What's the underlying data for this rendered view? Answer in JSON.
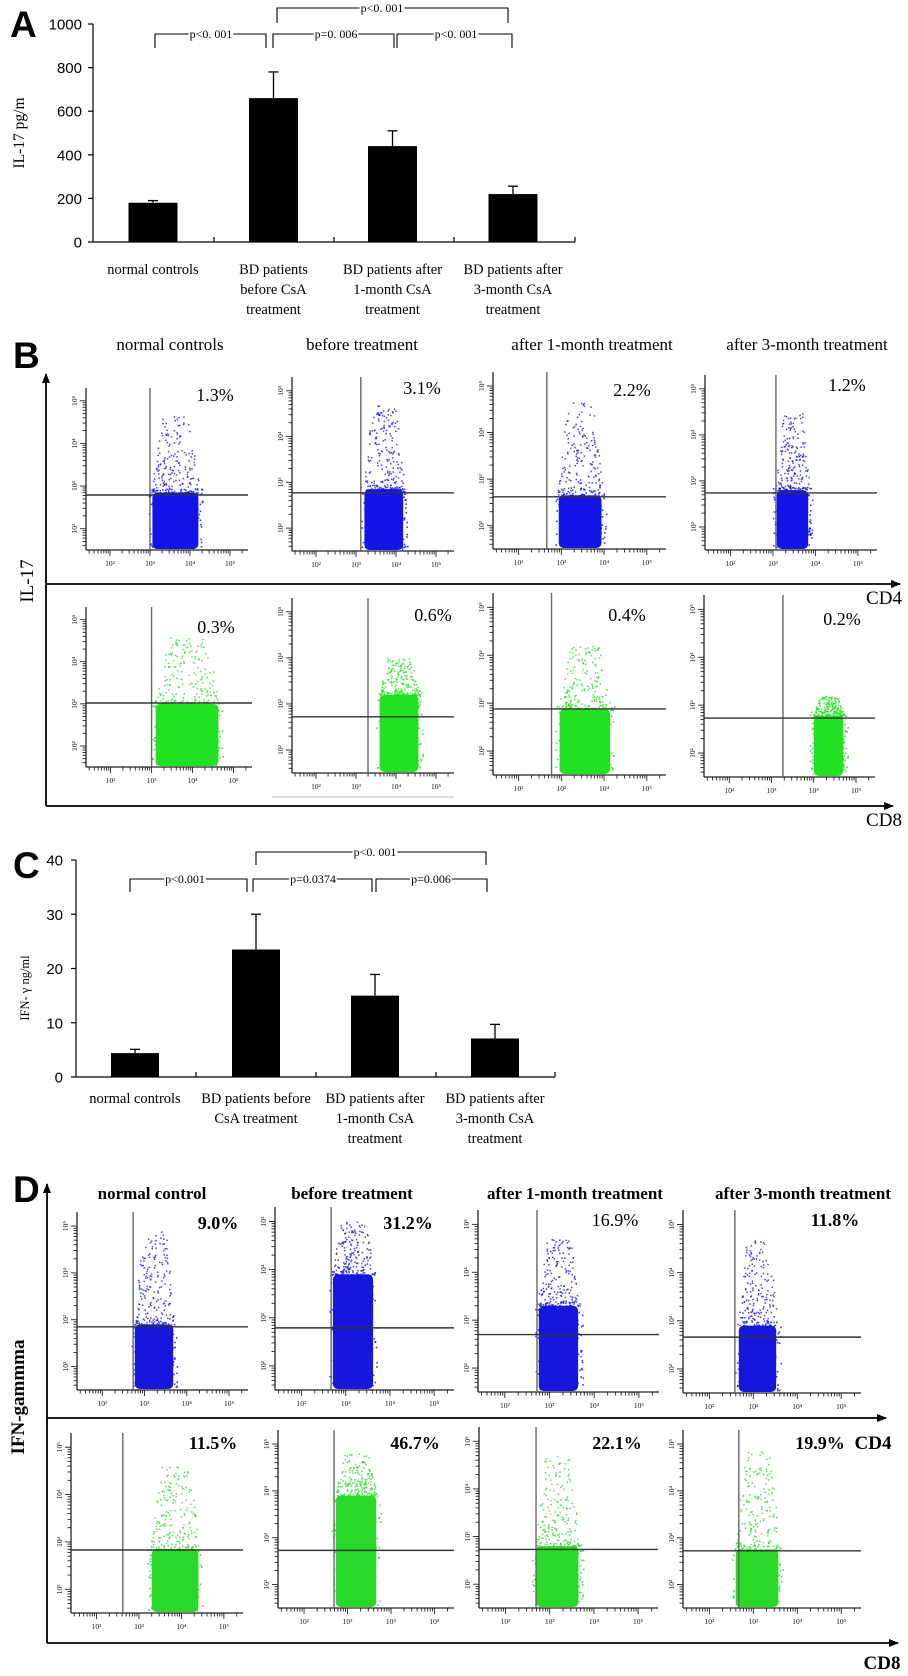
{
  "figure": {
    "panel_labels": [
      "A",
      "B",
      "C",
      "D"
    ]
  },
  "chart_data": [
    {
      "panel": "A",
      "type": "bar",
      "title": "",
      "xlabel": "",
      "ylabel": "IL-17 pg/m",
      "ylim": [
        0,
        1000
      ],
      "yticks": [
        0,
        200,
        400,
        600,
        800,
        1000
      ],
      "grid": false,
      "legend": "none",
      "categories": [
        [
          "normal controls"
        ],
        [
          "BD patients",
          "before CsA",
          "treatment"
        ],
        [
          "BD patients after",
          "1-month CsA",
          "treatment"
        ],
        [
          "BD patients after",
          "3-month CsA",
          "treatment"
        ]
      ],
      "values": [
        180,
        660,
        440,
        220
      ],
      "errors": [
        10,
        120,
        70,
        36
      ],
      "significance": [
        {
          "from": 0,
          "to": 1,
          "label": "p<0. 001",
          "level": 1
        },
        {
          "from": 1,
          "to": 2,
          "label": "p=0. 006",
          "level": 1
        },
        {
          "from": 2,
          "to": 3,
          "label": "p<0. 001",
          "level": 1
        },
        {
          "from": 1,
          "to": 3,
          "label": "p<0. 001",
          "level": 2
        }
      ]
    },
    {
      "panel": "B",
      "type": "scatter",
      "plot_kind": "flow cytometry dot plots",
      "ylabel": "IL-17",
      "axis_scale": "log10",
      "axis_range_log10": {
        "x": [
          1.4,
          5.45
        ],
        "y": [
          1.5,
          5.3
        ]
      },
      "tick_decades": [
        2,
        3,
        4,
        5
      ],
      "tick_labels": [
        "10²",
        "10³",
        "10⁴",
        "10⁵"
      ],
      "column_titles": [
        "normal controls",
        "before treatment",
        "after 1-month treatment",
        "after 3-month treatment"
      ],
      "rows": [
        {
          "xlabel": "CD4",
          "dot_color": "#1414e8",
          "plots": [
            {
              "percent": "1.3%",
              "gate_log10": {
                "x": 3.0,
                "y": 2.79
              },
              "population_log10": {
                "x": [
                  3.02,
                  4.25
                ],
                "dense_y_max": 2.85,
                "y_max": 4.67
              }
            },
            {
              "percent": "3.1%",
              "gate_log10": {
                "x": 3.12,
                "y": 2.77
              },
              "population_log10": {
                "x": [
                  3.17,
                  4.22
                ],
                "dense_y_max": 2.85,
                "y_max": 4.7
              }
            },
            {
              "percent": "2.2%",
              "gate_log10": {
                "x": 2.66,
                "y": 2.62
              },
              "population_log10": {
                "x": [
                  2.9,
                  3.98
                ],
                "dense_y_max": 2.65,
                "y_max": 4.66
              }
            },
            {
              "percent": "1.2%",
              "gate_log10": {
                "x": 3.07,
                "y": 2.74
              },
              "population_log10": {
                "x": [
                  3.05,
                  3.87
                ],
                "dense_y_max": 2.8,
                "y_max": 4.5
              }
            }
          ]
        },
        {
          "xlabel": "CD8",
          "dot_color": "#22e022",
          "plots": [
            {
              "percent": "0.3%",
              "gate_log10": {
                "x": 3.0,
                "y": 3.02
              },
              "population_log10": {
                "x": [
                  3.06,
                  4.67
                ],
                "dense_y_max": 3.0,
                "y_max": 4.6
              }
            },
            {
              "percent": "0.6%",
              "gate_log10": {
                "x": 3.3,
                "y": 2.72
              },
              "population_log10": {
                "x": [
                  3.55,
                  4.6
                ],
                "dense_y_max": 3.2,
                "y_max": 4.0
              }
            },
            {
              "percent": "0.4%",
              "gate_log10": {
                "x": 2.77,
                "y": 2.88
              },
              "population_log10": {
                "x": [
                  2.92,
                  4.18
                ],
                "dense_y_max": 2.88,
                "y_max": 4.2
              }
            },
            {
              "percent": "0.2%",
              "gate_log10": {
                "x": 3.27,
                "y": 2.73
              },
              "population_log10": {
                "x": [
                  3.96,
                  4.74
                ],
                "dense_y_max": 2.78,
                "y_max": 3.2
              }
            }
          ]
        }
      ]
    },
    {
      "panel": "C",
      "type": "bar",
      "title": "",
      "xlabel": "",
      "ylabel": "IFN- γ ng/ml",
      "ylim": [
        0,
        40
      ],
      "yticks": [
        0,
        10,
        20,
        30,
        40
      ],
      "grid": false,
      "legend": "none",
      "categories": [
        [
          "normal controls"
        ],
        [
          "BD patients before",
          "CsA treatment"
        ],
        [
          "BD patients after",
          "1-month CsA",
          "treatment"
        ],
        [
          "BD patients after",
          "3-month CsA",
          "treatment"
        ]
      ],
      "values": [
        4.4,
        23.5,
        15.0,
        7.1
      ],
      "errors": [
        0.7,
        6.5,
        3.9,
        2.6
      ],
      "significance": [
        {
          "from": 0,
          "to": 1,
          "label": "p<0.001",
          "level": 1
        },
        {
          "from": 1,
          "to": 2,
          "label": "p=0.0374",
          "level": 1
        },
        {
          "from": 2,
          "to": 3,
          "label": "p=0.006",
          "level": 1
        },
        {
          "from": 1,
          "to": 3,
          "label": "p<0. 001",
          "level": 2
        }
      ]
    },
    {
      "panel": "D",
      "type": "scatter",
      "plot_kind": "flow cytometry dot plots",
      "ylabel": "IFN-gammma",
      "axis_scale": "log10",
      "axis_range_log10": {
        "x": [
          1.4,
          5.45
        ],
        "y": [
          1.5,
          5.3
        ]
      },
      "tick_decades": [
        2,
        3,
        4,
        5
      ],
      "tick_labels": [
        "10²",
        "10³",
        "10⁴",
        "10⁵"
      ],
      "column_titles": [
        "normal control",
        "before treatment",
        "after 1-month treatment",
        "after 3-month treatment"
      ],
      "rows": [
        {
          "xlabel": "CD4",
          "dot_color": "#1616dc",
          "plots": [
            {
              "percent": "9.0%",
              "gate_log10": {
                "x": 2.73,
                "y": 2.85
              },
              "population_log10": {
                "x": [
                  2.73,
                  3.72
                ],
                "dense_y_max": 2.9,
                "y_max": 4.9
              }
            },
            {
              "percent": "31.2%",
              "gate_log10": {
                "x": 2.67,
                "y": 2.79
              },
              "population_log10": {
                "x": [
                  2.67,
                  3.66
                ],
                "dense_y_max": 3.9,
                "y_max": 5.0
              }
            },
            {
              "percent": "16.9%",
              "gate_log10": {
                "x": 2.72,
                "y": 2.7
              },
              "population_log10": {
                "x": [
                  2.72,
                  3.68
                ],
                "dense_y_max": 3.3,
                "y_max": 4.7
              }
            },
            {
              "percent": "11.8%",
              "gate_log10": {
                "x": 2.58,
                "y": 2.66
              },
              "population_log10": {
                "x": [
                  2.63,
                  3.56
                ],
                "dense_y_max": 2.9,
                "y_max": 4.7
              }
            }
          ]
        },
        {
          "xlabel": "CD8",
          "extra_label": "CD4",
          "dot_color": "#2ad82a",
          "plots": [
            {
              "percent": "11.5%",
              "gate_log10": {
                "x": 2.62,
                "y": 2.83
              },
              "population_log10": {
                "x": [
                  3.26,
                  4.44
                ],
                "dense_y_max": 2.85,
                "y_max": 4.6
              }
            },
            {
              "percent": "46.7%",
              "gate_log10": {
                "x": 2.69,
                "y": 2.73
              },
              "population_log10": {
                "x": [
                  2.69,
                  3.7
                ],
                "dense_y_max": 3.9,
                "y_max": 4.8
              }
            },
            {
              "percent": "22.1%",
              "gate_log10": {
                "x": 2.69,
                "y": 2.73
              },
              "population_log10": {
                "x": [
                  2.65,
                  3.69
                ],
                "dense_y_max": 2.8,
                "y_max": 4.7
              }
            },
            {
              "percent": "19.9%",
              "gate_log10": {
                "x": 2.67,
                "y": 2.72
              },
              "population_log10": {
                "x": [
                  2.56,
                  3.61
                ],
                "dense_y_max": 2.75,
                "y_max": 4.85
              }
            }
          ]
        }
      ]
    }
  ]
}
